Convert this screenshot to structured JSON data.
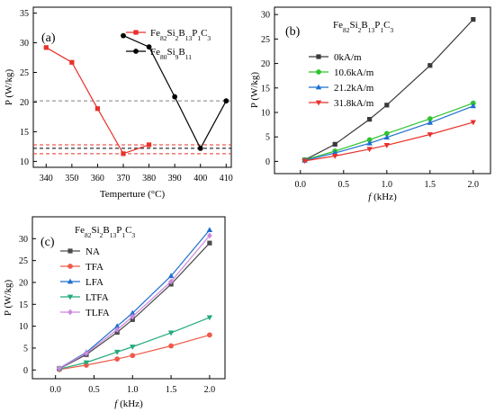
{
  "chart_data": [
    {
      "id": "a",
      "type": "line",
      "panel_label": "(a)",
      "title": "",
      "xlabel": "Temperture (°C)",
      "ylabel": "P (W/kg)",
      "xlim": [
        335,
        412
      ],
      "ylim": [
        9,
        36
      ],
      "xticks": [
        340,
        350,
        360,
        370,
        380,
        390,
        400,
        410
      ],
      "yticks": [
        10,
        15,
        20,
        25,
        30,
        35
      ],
      "grid": false,
      "legend_position": "top-right",
      "series": [
        {
          "name_base": "Fe",
          "name_parts": [
            [
              "82",
              ""
            ],
            [
              "Si",
              ""
            ],
            [
              "2",
              ""
            ],
            [
              "B",
              ""
            ],
            [
              "13",
              ""
            ],
            [
              "P",
              ""
            ],
            [
              "1",
              ""
            ],
            [
              "C",
              ""
            ],
            [
              "3",
              ""
            ]
          ],
          "name": "Fe82Si2B13P1C3",
          "color": "#e8302a",
          "marker": "square",
          "x": [
            340,
            350,
            360,
            370,
            380
          ],
          "y": [
            29.2,
            26.7,
            18.9,
            11.3,
            12.8
          ]
        },
        {
          "name": "Fe80Si9B11",
          "color": "#000000",
          "marker": "circle",
          "x": [
            370,
            380,
            390,
            400,
            410
          ],
          "y": [
            31.2,
            29.3,
            20.9,
            12.2,
            20.2
          ]
        }
      ],
      "reference_lines": [
        {
          "y": 20.2,
          "color": "#808080",
          "style": "dashed"
        },
        {
          "y": 12.8,
          "color": "#e8302a",
          "style": "dashed"
        },
        {
          "y": 12.2,
          "color": "#000000",
          "style": "dashed"
        },
        {
          "y": 11.3,
          "color": "#e8302a",
          "style": "dashed"
        }
      ]
    },
    {
      "id": "b",
      "type": "line",
      "panel_label": "(b)",
      "title": "Fe82Si2B13P1C3",
      "xlabel": "f (kHz)",
      "ylabel": "P (W/kg)",
      "xlim": [
        -0.3,
        2.2
      ],
      "ylim": [
        -2.5,
        31.5
      ],
      "xticks": [
        0.0,
        0.5,
        1.0,
        1.5,
        2.0
      ],
      "yticks": [
        0,
        5,
        10,
        15,
        20,
        25,
        30
      ],
      "grid": false,
      "legend_position": "top-left",
      "x": [
        0.05,
        0.4,
        0.8,
        1.0,
        1.5,
        2.0
      ],
      "series": [
        {
          "name": "0kA/m",
          "color": "#3a3a3a",
          "marker": "square",
          "values": [
            0.3,
            3.5,
            8.6,
            11.5,
            19.6,
            29.0
          ]
        },
        {
          "name": "10.6kA/m",
          "color": "#2fc42f",
          "marker": "circle",
          "values": [
            0.3,
            2.1,
            4.4,
            5.7,
            8.7,
            11.9
          ]
        },
        {
          "name": "21.2kA/m",
          "color": "#1f6fd0",
          "marker": "triangle-up",
          "values": [
            0.2,
            1.7,
            3.7,
            4.9,
            7.9,
            11.3
          ]
        },
        {
          "name": "31.8kA/m",
          "color": "#e8302a",
          "marker": "triangle-down",
          "values": [
            0.1,
            1.1,
            2.5,
            3.3,
            5.5,
            8.0
          ]
        }
      ]
    },
    {
      "id": "c",
      "type": "line",
      "panel_label": "(c)",
      "title": "Fe82Si2B13P1C3",
      "xlabel": "f (kHz)",
      "ylabel": "P (W/kg)",
      "xlim": [
        -0.3,
        2.2
      ],
      "ylim": [
        -2.0,
        35.0
      ],
      "xticks": [
        0.0,
        0.5,
        1.0,
        1.5,
        2.0
      ],
      "yticks": [
        0,
        5,
        10,
        15,
        20,
        25,
        30
      ],
      "grid": false,
      "legend_position": "top-left",
      "x": [
        0.05,
        0.4,
        0.8,
        1.0,
        1.5,
        2.0
      ],
      "series": [
        {
          "name": "NA",
          "color": "#4a4a4a",
          "marker": "square",
          "values": [
            0.3,
            3.5,
            8.6,
            11.5,
            19.6,
            29.0
          ]
        },
        {
          "name": "TFA",
          "color": "#f05a4a",
          "marker": "circle",
          "values": [
            0.1,
            1.1,
            2.5,
            3.3,
            5.5,
            8.0
          ]
        },
        {
          "name": "LFA",
          "color": "#1f6fd0",
          "marker": "triangle-up",
          "values": [
            0.4,
            4.0,
            10.0,
            13.0,
            21.5,
            32.0
          ]
        },
        {
          "name": "LTFA",
          "color": "#22aa7a",
          "marker": "triangle-down",
          "values": [
            0.2,
            1.7,
            4.1,
            5.3,
            8.5,
            12.0
          ]
        },
        {
          "name": "TLFA",
          "color": "#cc88dd",
          "marker": "diamond",
          "values": [
            0.4,
            3.8,
            9.2,
            12.2,
            20.2,
            30.7
          ]
        }
      ]
    }
  ]
}
